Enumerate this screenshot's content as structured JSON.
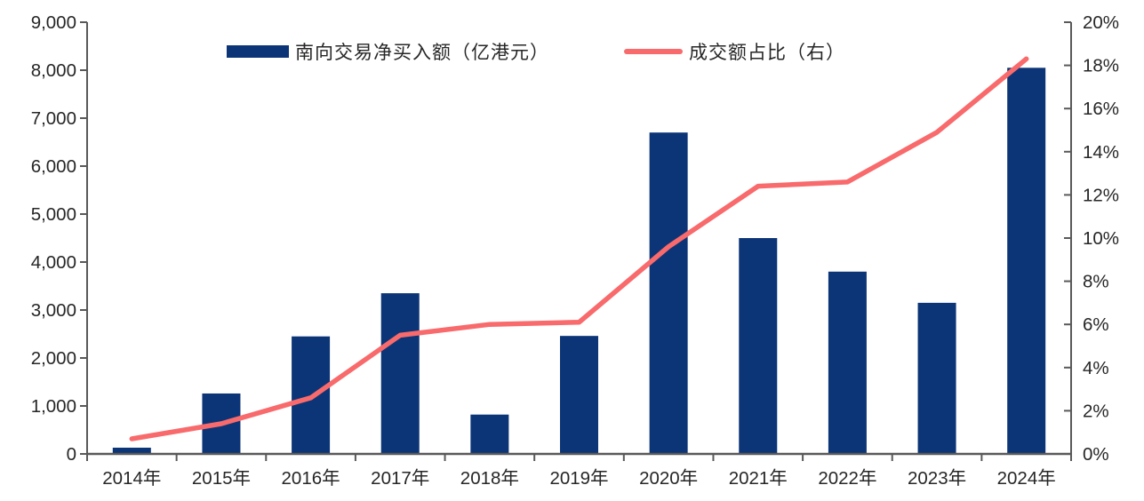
{
  "chart_data": {
    "type": "bar",
    "subtype": "combo-bar-line-dual-axis",
    "title": "",
    "categories": [
      "2014年",
      "2015年",
      "2016年",
      "2017年",
      "2018年",
      "2019年",
      "2020年",
      "2021年",
      "2022年",
      "2023年",
      "2024年"
    ],
    "series": [
      {
        "name": "南向交易净买入额（亿港元）",
        "type": "bar",
        "axis": "left",
        "color": "#0C3577",
        "values": [
          130,
          1260,
          2450,
          3350,
          820,
          2460,
          6700,
          4500,
          3800,
          3150,
          8050
        ]
      },
      {
        "name": "成交额占比（右）",
        "type": "line",
        "axis": "right",
        "color": "#F86A6C",
        "values": [
          0.7,
          1.4,
          2.6,
          5.5,
          6.0,
          6.1,
          9.6,
          12.4,
          12.6,
          14.9,
          18.3
        ]
      }
    ],
    "left_axis": {
      "min": 0,
      "max": 9000,
      "step": 1000,
      "tick_labels": [
        "0",
        "1,000",
        "2,000",
        "3,000",
        "4,000",
        "5,000",
        "6,000",
        "7,000",
        "8,000",
        "9,000"
      ]
    },
    "right_axis": {
      "min": 0,
      "max": 20,
      "step": 2,
      "tick_labels": [
        "0%",
        "2%",
        "4%",
        "6%",
        "8%",
        "10%",
        "12%",
        "14%",
        "16%",
        "18%",
        "20%"
      ]
    },
    "legend_position": "top-center",
    "grid": false,
    "colors": {
      "bar": "#0C3577",
      "line": "#F86A6C",
      "axis": "#595959",
      "text": "#262626"
    }
  }
}
